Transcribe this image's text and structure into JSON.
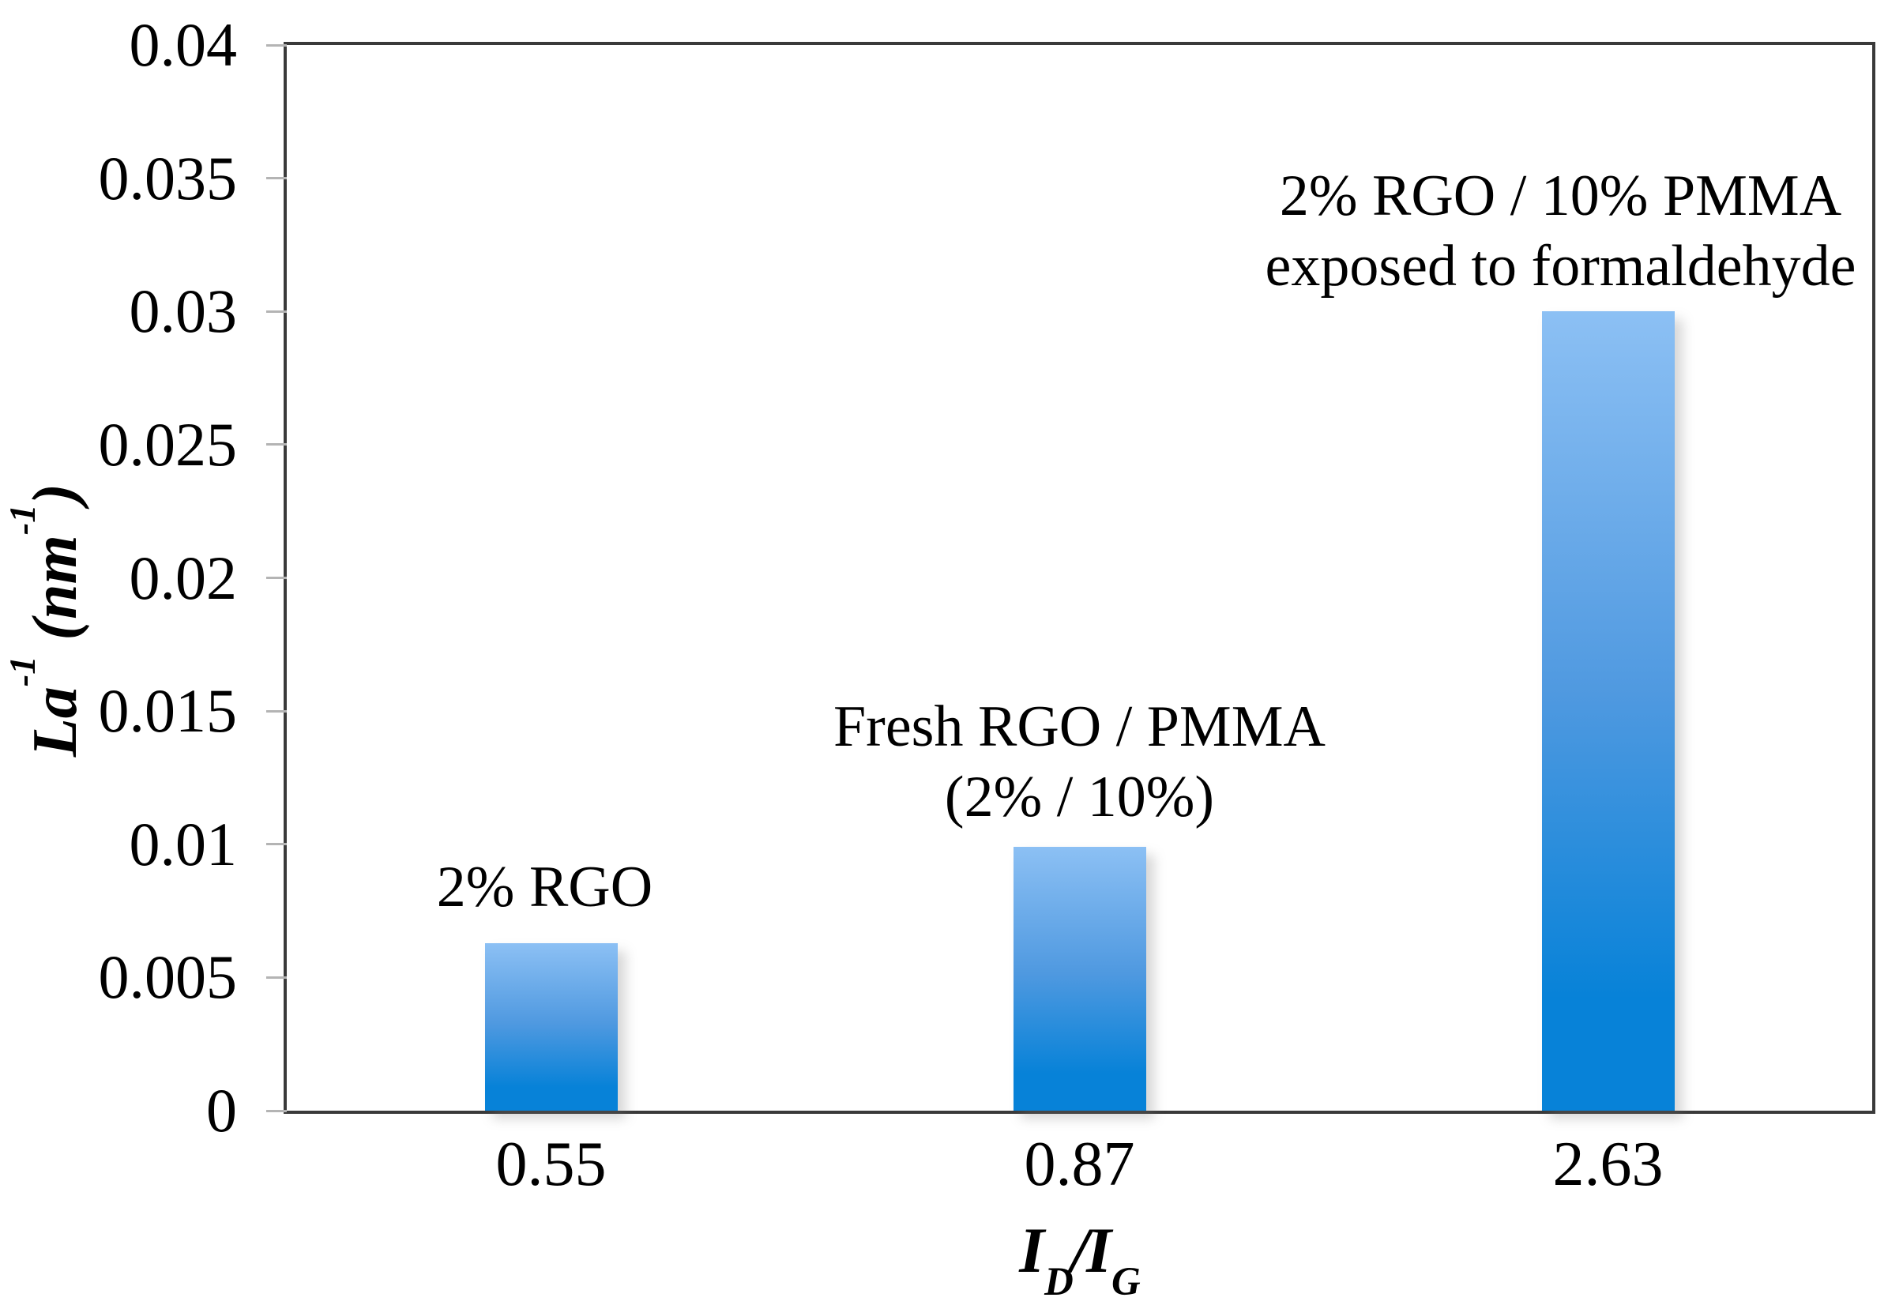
{
  "chart_data": {
    "type": "bar",
    "title": "",
    "ylabel": "La-1 (nm-1)",
    "xlabel": "ID/IG",
    "ylabel_parts": {
      "p1": "La",
      "sup1": "-1",
      "p2": " (nm",
      "sup2": "-1",
      "p3": ")"
    },
    "xlabel_parts": {
      "base1": "I",
      "sub1": "D",
      "slash": "/",
      "base2": "I",
      "sub2": "G"
    },
    "categories": [
      "0.55",
      "0.87",
      "2.63"
    ],
    "values": [
      0.0063,
      0.0099,
      0.03
    ],
    "bar_annotations": [
      "2% RGO",
      "Fresh RGO / PMMA\n(2% / 10%)",
      "2% RGO / 10% PMMA\nexposed to formaldehyde"
    ],
    "ylim": [
      0,
      0.04
    ],
    "ytick_step": 0.005,
    "yticks": [
      "0.04",
      "0.035",
      "0.03",
      "0.025",
      "0.02",
      "0.015",
      "0.01",
      "0.005",
      "0"
    ],
    "grid": false,
    "legend_position": "none",
    "colors": {
      "bar_gradient_top": "#8cc0f4",
      "bar_gradient_mid": "#4f99e0",
      "bar_gradient_bottom": "#0782d8",
      "axis_line": "#3a3a3a",
      "tick_mark": "#b4b4b4",
      "text": "#000000",
      "plot_background": "#ffffff"
    }
  }
}
